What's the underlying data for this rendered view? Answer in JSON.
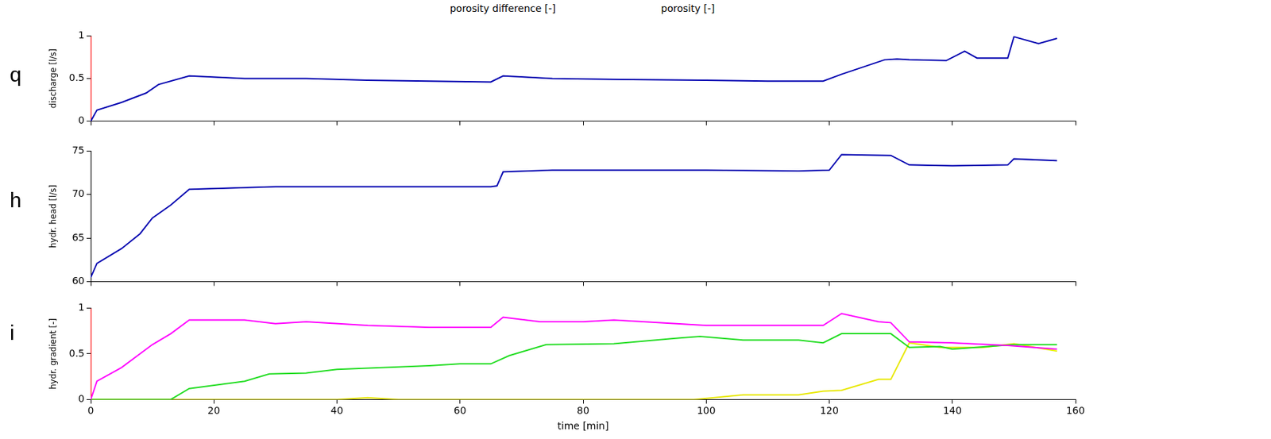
{
  "chart_data": [
    {
      "type": "line",
      "panel_label": "q",
      "ylabel": "discharge [l/s]",
      "annotations": [
        "porosity difference [-]",
        "porosity [-]"
      ],
      "xlim": [
        0,
        160
      ],
      "xticks": [
        0,
        20,
        40,
        60,
        80,
        100,
        120,
        140,
        160
      ],
      "ylim": [
        0,
        1
      ],
      "yticks": [
        0,
        0.5,
        1
      ],
      "tick_labels": "y",
      "grid": false,
      "series": [
        {
          "color": "#0000b0",
          "x": [
            0,
            1,
            5,
            9,
            11,
            16,
            25,
            35,
            45,
            55,
            65,
            67,
            75,
            85,
            100,
            110,
            119,
            122,
            129,
            131,
            133,
            139,
            142,
            144,
            149,
            150,
            154,
            157
          ],
          "values": [
            0,
            0.13,
            0.22,
            0.33,
            0.43,
            0.53,
            0.5,
            0.5,
            0.48,
            0.47,
            0.46,
            0.53,
            0.5,
            0.49,
            0.48,
            0.47,
            0.47,
            0.55,
            0.72,
            0.73,
            0.72,
            0.71,
            0.82,
            0.74,
            0.74,
            0.99,
            0.91,
            0.97
          ]
        },
        {
          "color": "#ff0000",
          "x": [
            0,
            0
          ],
          "values": [
            0,
            1
          ]
        }
      ]
    },
    {
      "type": "line",
      "panel_label": "h",
      "ylabel": "hydr. head [l/s]",
      "xlim": [
        0,
        160
      ],
      "xticks": [
        0,
        20,
        40,
        60,
        80,
        100,
        120,
        140,
        160
      ],
      "ylim": [
        60,
        75
      ],
      "yticks": [
        60,
        65,
        70,
        75
      ],
      "tick_labels": "y",
      "grid": false,
      "series": [
        {
          "color": "#0000b0",
          "x": [
            0,
            1,
            5,
            8,
            10,
            13,
            16,
            30,
            65,
            66,
            67,
            75,
            100,
            115,
            120,
            122,
            130,
            133,
            140,
            149,
            150,
            157
          ],
          "values": [
            60.5,
            62.1,
            63.8,
            65.5,
            67.3,
            68.8,
            70.6,
            70.9,
            70.9,
            71.0,
            72.6,
            72.8,
            72.8,
            72.7,
            72.8,
            74.6,
            74.5,
            73.4,
            73.3,
            73.4,
            74.1,
            73.9
          ]
        }
      ]
    },
    {
      "type": "line",
      "panel_label": "i",
      "ylabel": "hydr. gradient [-]",
      "xlabel": "time [min]",
      "xlim": [
        0,
        160
      ],
      "xticks": [
        0,
        20,
        40,
        60,
        80,
        100,
        120,
        140,
        160
      ],
      "ylim": [
        0,
        1
      ],
      "yticks": [
        0,
        0.5,
        1
      ],
      "grid": false,
      "series": [
        {
          "color": "#ff00ff",
          "x": [
            0,
            1,
            5,
            10,
            13,
            16,
            25,
            30,
            35,
            45,
            55,
            65,
            67,
            73,
            80,
            85,
            100,
            119,
            122,
            128,
            130,
            133,
            140,
            149,
            157
          ],
          "values": [
            0,
            0.2,
            0.35,
            0.6,
            0.72,
            0.87,
            0.87,
            0.83,
            0.85,
            0.81,
            0.79,
            0.79,
            0.9,
            0.85,
            0.85,
            0.87,
            0.81,
            0.81,
            0.94,
            0.85,
            0.84,
            0.63,
            0.62,
            0.59,
            0.55
          ]
        },
        {
          "color": "#22dd22",
          "x": [
            0,
            13,
            16,
            25,
            29,
            35,
            40,
            55,
            60,
            65,
            68,
            74,
            85,
            95,
            99,
            106,
            115,
            119,
            122,
            130,
            133,
            138,
            140,
            150,
            157
          ],
          "values": [
            0,
            0,
            0.12,
            0.2,
            0.28,
            0.29,
            0.33,
            0.37,
            0.39,
            0.39,
            0.48,
            0.6,
            0.61,
            0.67,
            0.69,
            0.65,
            0.65,
            0.62,
            0.72,
            0.72,
            0.57,
            0.58,
            0.55,
            0.6,
            0.6
          ]
        },
        {
          "color": "#e8e800",
          "x": [
            0,
            40,
            45,
            50,
            65,
            98,
            106,
            115,
            119,
            122,
            128,
            130,
            133,
            138,
            145,
            150,
            157
          ],
          "values": [
            0,
            0,
            0.02,
            0,
            0,
            0,
            0.05,
            0.05,
            0.09,
            0.1,
            0.22,
            0.22,
            0.62,
            0.57,
            0.57,
            0.61,
            0.53
          ]
        },
        {
          "color": "#ff0000",
          "x": [
            0,
            0
          ],
          "values": [
            0,
            1
          ]
        }
      ]
    }
  ]
}
